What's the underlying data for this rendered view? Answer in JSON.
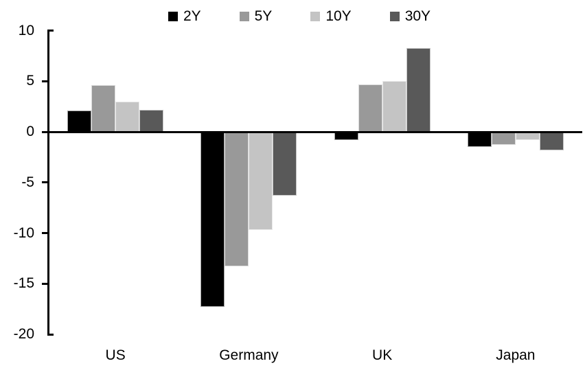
{
  "chart_data": {
    "type": "bar",
    "title": "",
    "xlabel": "",
    "ylabel": "",
    "categories": [
      "US",
      "Germany",
      "UK",
      "Japan"
    ],
    "series": [
      {
        "name": "2Y",
        "color": "#000000",
        "values": [
          2.1,
          -17.3,
          -0.8,
          -1.5
        ]
      },
      {
        "name": "5Y",
        "color": "#999999",
        "values": [
          4.6,
          -13.3,
          4.7,
          -1.3
        ]
      },
      {
        "name": "10Y",
        "color": "#c4c4c4",
        "values": [
          3.0,
          -9.7,
          5.0,
          -0.8
        ]
      },
      {
        "name": "30Y",
        "color": "#595959",
        "values": [
          2.2,
          -6.3,
          8.3,
          -1.8
        ]
      }
    ],
    "ylim": [
      -20,
      10
    ],
    "yticks": [
      10,
      5,
      0,
      -5,
      -10,
      -15,
      -20
    ],
    "grid": false,
    "legend_position": "top",
    "axis_color": "#000000",
    "background_color": "#ffffff"
  }
}
